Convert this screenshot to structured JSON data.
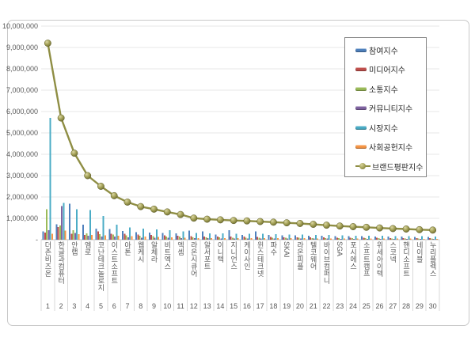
{
  "title": "",
  "colors": {
    "participation": "#4F81BD",
    "media": "#C0504D",
    "communication": "#9BBB59",
    "community": "#8064A2",
    "market": "#4BACC6",
    "social_contribution": "#F79646",
    "brand_line": "#8F8E44",
    "gridline": "#E7E7E7",
    "axis_line": "#BFBFBF",
    "separator": "#D9D9D9",
    "tick_text": "#595959"
  },
  "legend": {
    "items": [
      {
        "id": "participation-index",
        "label": "참여지수",
        "type": "bar",
        "color": "#4F81BD"
      },
      {
        "id": "media-index",
        "label": "미디어지수",
        "type": "bar",
        "color": "#C0504D"
      },
      {
        "id": "communication-index",
        "label": "소통지수",
        "type": "bar",
        "color": "#9BBB59"
      },
      {
        "id": "community-index",
        "label": "커뮤니티지수",
        "type": "bar",
        "color": "#8064A2"
      },
      {
        "id": "market-index",
        "label": "시장지수",
        "type": "bar",
        "color": "#4BACC6"
      },
      {
        "id": "social-contribution-index",
        "label": "사회공헌지수",
        "type": "bar",
        "color": "#F79646"
      },
      {
        "id": "brand-reputation-index",
        "label": "브랜드평판지수",
        "type": "line",
        "color": "#8F8E44"
      }
    ]
  },
  "y_axis": {
    "ticks": [
      "10,000,000",
      "9,000,000",
      "8,000,000",
      "7,000,000",
      "6,000,000",
      "5,000,000",
      "4,000,000",
      "3,000,000",
      "2,000,000",
      "1,000,000",
      "-"
    ],
    "max": 10000000,
    "min": 0,
    "step": 1000000
  },
  "chart_data": {
    "type": "bar",
    "combo": "grouped bars + line overlay with circular markers",
    "legend_position": "top-right inset",
    "grid": "horizontal light gray lines every 1,000,000",
    "ylim": [
      0,
      10000000
    ],
    "categories": [
      {
        "rank": 1,
        "name": "더존비즈온"
      },
      {
        "rank": 2,
        "name": "한글과컴퓨터"
      },
      {
        "rank": 3,
        "name": "안랩"
      },
      {
        "rank": 4,
        "name": "엠로"
      },
      {
        "rank": 5,
        "name": "코난테크놀로지"
      },
      {
        "rank": 6,
        "name": "이스트소프트"
      },
      {
        "rank": 7,
        "name": "아톤"
      },
      {
        "rank": 8,
        "name": "웹케시"
      },
      {
        "rank": 9,
        "name": "알체라"
      },
      {
        "rank": 10,
        "name": "비트엑스"
      },
      {
        "rank": 11,
        "name": "엑셈"
      },
      {
        "rank": 12,
        "name": "라온시큐어"
      },
      {
        "rank": 13,
        "name": "알서포트"
      },
      {
        "rank": 14,
        "name": "이니텍"
      },
      {
        "rank": 15,
        "name": "지니언스"
      },
      {
        "rank": 16,
        "name": "케이사인"
      },
      {
        "rank": 17,
        "name": "윈스테크넷"
      },
      {
        "rank": 18,
        "name": "파수"
      },
      {
        "rank": 19,
        "name": "SKAI"
      },
      {
        "rank": 20,
        "name": "라온피플"
      },
      {
        "rank": 21,
        "name": "텔코웨어"
      },
      {
        "rank": 22,
        "name": "바이브컴퍼니"
      },
      {
        "rank": 23,
        "name": "SGA"
      },
      {
        "rank": 24,
        "name": "포시에스"
      },
      {
        "rank": 25,
        "name": "소프트캠프"
      },
      {
        "rank": 26,
        "name": "위세아이텍"
      },
      {
        "rank": 27,
        "name": "스코넥"
      },
      {
        "rank": 28,
        "name": "핸디소프트"
      },
      {
        "rank": 29,
        "name": "네이블"
      },
      {
        "rank": 30,
        "name": "누리플렉스"
      }
    ],
    "series": [
      {
        "id": "participation-index",
        "name": "참여지수",
        "color": "#4F81BD",
        "values": [
          380000,
          720000,
          1680000,
          700000,
          520000,
          500000,
          400000,
          360000,
          330000,
          310000,
          290000,
          420000,
          380000,
          240000,
          450000,
          230000,
          380000,
          220000,
          210000,
          200000,
          190000,
          180000,
          170000,
          160000,
          160000,
          150000,
          140000,
          140000,
          130000,
          130000
        ]
      },
      {
        "id": "media-index",
        "name": "미디어지수",
        "color": "#C0504D",
        "values": [
          330000,
          600000,
          280000,
          220000,
          380000,
          280000,
          280000,
          240000,
          220000,
          200000,
          180000,
          160000,
          150000,
          140000,
          140000,
          140000,
          130000,
          130000,
          120000,
          120000,
          110000,
          110000,
          100000,
          100000,
          90000,
          90000,
          80000,
          80000,
          80000,
          70000
        ]
      },
      {
        "id": "communication-index",
        "name": "소통지수",
        "color": "#9BBB59",
        "values": [
          1420000,
          660000,
          450000,
          300000,
          260000,
          240000,
          200000,
          180000,
          160000,
          150000,
          140000,
          120000,
          110000,
          110000,
          100000,
          100000,
          100000,
          100000,
          90000,
          90000,
          80000,
          80000,
          80000,
          70000,
          70000,
          70000,
          60000,
          60000,
          60000,
          60000
        ]
      },
      {
        "id": "community-index",
        "name": "커뮤니티지수",
        "color": "#8064A2",
        "values": [
          450000,
          1580000,
          320000,
          180000,
          140000,
          140000,
          120000,
          100000,
          100000,
          90000,
          80000,
          70000,
          70000,
          60000,
          60000,
          60000,
          60000,
          60000,
          50000,
          50000,
          50000,
          50000,
          40000,
          40000,
          40000,
          40000,
          40000,
          40000,
          30000,
          30000
        ]
      },
      {
        "id": "market-index",
        "name": "시장지수",
        "color": "#4BACC6",
        "values": [
          5700000,
          1720000,
          1420000,
          1380000,
          1120000,
          700000,
          580000,
          520000,
          480000,
          440000,
          390000,
          310000,
          290000,
          290000,
          280000,
          280000,
          270000,
          260000,
          250000,
          240000,
          230000,
          220000,
          200000,
          190000,
          190000,
          180000,
          170000,
          160000,
          160000,
          150000
        ]
      },
      {
        "id": "social-contribution-index",
        "name": "사회공헌지수",
        "color": "#F79646",
        "values": [
          280000,
          420000,
          260000,
          220000,
          200000,
          190000,
          170000,
          150000,
          130000,
          110000,
          100000,
          80000,
          80000,
          80000,
          80000,
          80000,
          80000,
          70000,
          70000,
          70000,
          60000,
          60000,
          60000,
          60000,
          50000,
          50000,
          50000,
          50000,
          40000,
          40000
        ]
      }
    ],
    "line_series": {
      "id": "brand-reputation-index",
      "name": "브랜드평판지수",
      "color": "#8F8E44",
      "values": [
        9200000,
        5700000,
        4050000,
        3000000,
        2500000,
        2060000,
        1760000,
        1550000,
        1430000,
        1300000,
        1180000,
        1010000,
        960000,
        930000,
        900000,
        880000,
        850000,
        820000,
        790000,
        760000,
        720000,
        680000,
        640000,
        610000,
        580000,
        550000,
        520000,
        500000,
        470000,
        450000
      ]
    }
  }
}
